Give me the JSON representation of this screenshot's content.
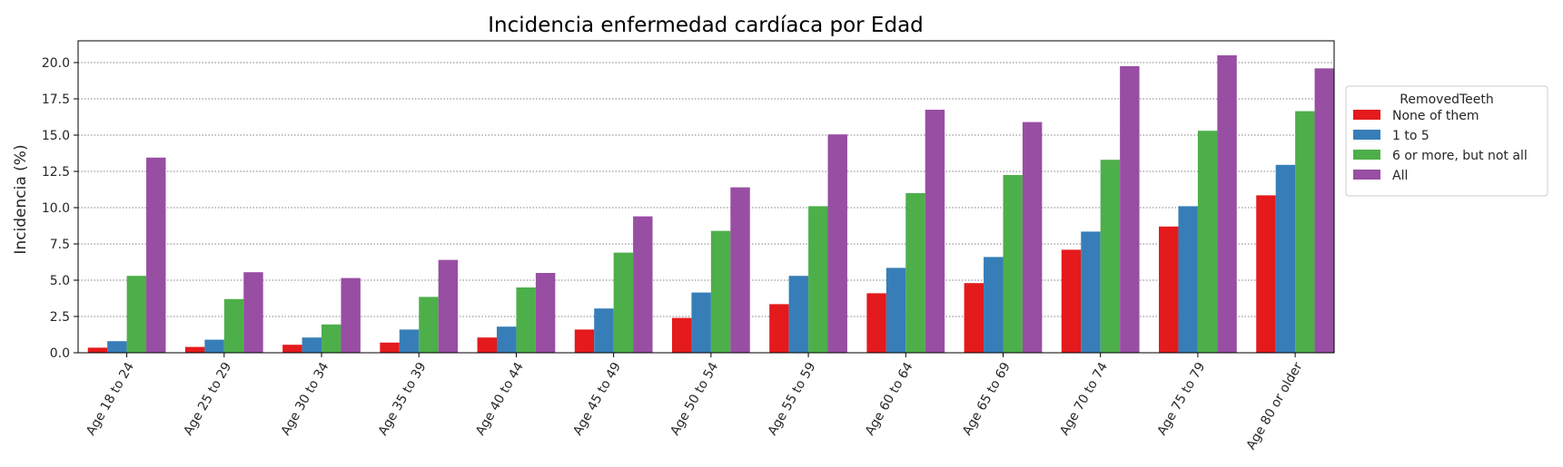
{
  "chart_data": {
    "type": "bar",
    "title": "Incidencia enfermedad cardíaca por Edad",
    "xlabel": "",
    "ylabel": "Incidencia (%)",
    "ylim": [
      0,
      21.5
    ],
    "yticks": [
      0.0,
      2.5,
      5.0,
      7.5,
      10.0,
      12.5,
      15.0,
      17.5,
      20.0
    ],
    "ytick_labels": [
      "0.0",
      "2.5",
      "5.0",
      "7.5",
      "10.0",
      "12.5",
      "15.0",
      "17.5",
      "20.0"
    ],
    "grid": "horizontal-dotted",
    "legend_title": "RemovedTeeth",
    "legend_position": "outside-right",
    "categories": [
      "Age 18 to 24",
      "Age 25 to 29",
      "Age 30 to 34",
      "Age 35 to 39",
      "Age 40 to 44",
      "Age 45 to 49",
      "Age 50 to 54",
      "Age 55 to 59",
      "Age 60 to 64",
      "Age 65 to 69",
      "Age 70 to 74",
      "Age 75 to 79",
      "Age 80 or older"
    ],
    "series": [
      {
        "name": "None of them",
        "color": "#e41a1c",
        "values": [
          0.35,
          0.4,
          0.55,
          0.7,
          1.05,
          1.6,
          2.4,
          3.35,
          4.1,
          4.8,
          7.1,
          8.7,
          10.85
        ]
      },
      {
        "name": "1 to 5",
        "color": "#377eb8",
        "values": [
          0.8,
          0.9,
          1.05,
          1.6,
          1.8,
          3.05,
          4.15,
          5.3,
          5.85,
          6.6,
          8.35,
          10.1,
          12.95
        ]
      },
      {
        "name": "6 or more, but not all",
        "color": "#4daf4a",
        "values": [
          5.3,
          3.7,
          1.95,
          3.85,
          4.5,
          6.9,
          8.4,
          10.1,
          11.0,
          12.25,
          13.3,
          15.3,
          16.65
        ]
      },
      {
        "name": "All",
        "color": "#984ea3",
        "values": [
          13.45,
          5.55,
          5.15,
          6.4,
          5.5,
          9.4,
          11.4,
          15.05,
          16.75,
          15.9,
          19.75,
          20.5,
          19.6
        ]
      }
    ]
  }
}
